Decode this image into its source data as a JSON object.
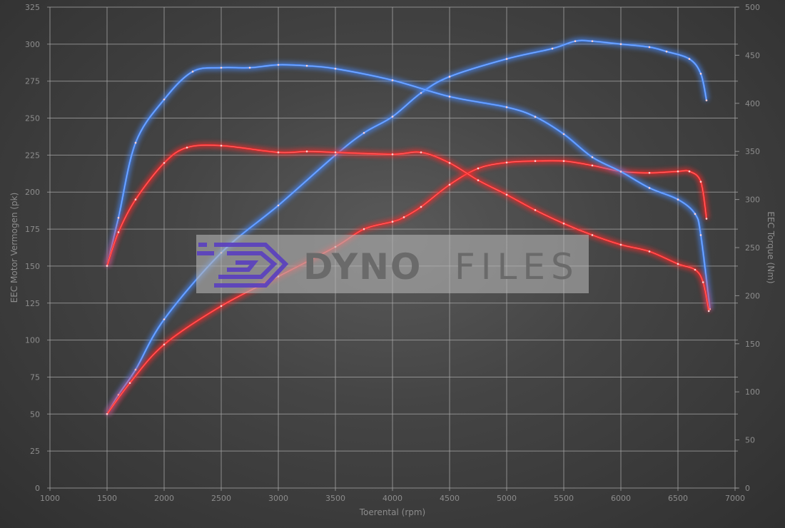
{
  "chart_data": {
    "type": "line",
    "xlabel": "Toerental (rpm)",
    "ylabel_left": "EEC Motor Vermogen (pk)",
    "ylabel_right": "EEC Torque (Nm)",
    "xlim": [
      1000,
      7000
    ],
    "ylim_left": [
      0,
      325
    ],
    "ylim_right": [
      0,
      500
    ],
    "x_ticks": [
      1000,
      1500,
      2000,
      2500,
      3000,
      3500,
      4000,
      4500,
      5000,
      5500,
      6000,
      6500,
      7000
    ],
    "y_ticks_left": [
      0,
      25,
      50,
      75,
      100,
      125,
      150,
      175,
      200,
      225,
      250,
      275,
      300,
      325
    ],
    "y_ticks_right": [
      0,
      50,
      100,
      150,
      200,
      250,
      300,
      350,
      400,
      450,
      500
    ],
    "grid": true,
    "series": [
      {
        "axis": "left",
        "color": "#4a8cff",
        "x": [
          1500,
          1600,
          1750,
          2000,
          2500,
          3000,
          3500,
          3750,
          4000,
          4250,
          4500,
          5000,
          5400,
          5600,
          5750,
          6000,
          6250,
          6400,
          6600,
          6700,
          6750
        ],
        "values": [
          50,
          63,
          80,
          114,
          159,
          191,
          225,
          240,
          251,
          267,
          278,
          290,
          297,
          302,
          302,
          300,
          298,
          295,
          290,
          280,
          262
        ]
      },
      {
        "axis": "left",
        "color": "#ff2a2a",
        "x": [
          1500,
          1700,
          2000,
          2500,
          3000,
          3500,
          3750,
          4000,
          4100,
          4250,
          4500,
          4750,
          5000,
          5250,
          5500,
          5750,
          6000,
          6250,
          6500,
          6600,
          6700,
          6750
        ],
        "values": [
          50,
          71,
          97,
          123,
          143,
          163,
          175,
          180,
          183,
          190,
          205,
          216,
          220,
          221,
          221,
          218,
          214,
          213,
          214,
          214,
          207,
          182
        ]
      },
      {
        "axis": "right",
        "color": "#4a8cff",
        "x": [
          1500,
          1600,
          1750,
          2000,
          2250,
          2500,
          2750,
          3000,
          3250,
          3500,
          4000,
          4500,
          5000,
          5250,
          5500,
          5750,
          6000,
          6250,
          6500,
          6650,
          6700,
          6780
        ],
        "values": [
          231,
          281,
          359,
          404,
          433,
          437,
          437,
          440,
          439,
          436,
          424,
          407,
          396,
          386,
          368,
          344,
          329,
          312,
          300,
          285,
          263,
          186
        ]
      },
      {
        "axis": "right",
        "color": "#ff2a2a",
        "x": [
          1500,
          1600,
          1750,
          2000,
          2200,
          2500,
          3000,
          3250,
          3500,
          4000,
          4250,
          4500,
          4750,
          5000,
          5250,
          5500,
          5750,
          6000,
          6250,
          6500,
          6650,
          6720,
          6770
        ],
        "values": [
          231,
          266,
          300,
          338,
          354,
          356,
          349,
          350,
          349,
          347,
          349,
          338,
          320,
          305,
          289,
          275,
          263,
          253,
          246,
          233,
          227,
          214,
          184
        ]
      }
    ]
  },
  "watermark": {
    "text_bold": "DYNO",
    "text_light": "FILES",
    "logo_color": "#5a3fc0"
  }
}
